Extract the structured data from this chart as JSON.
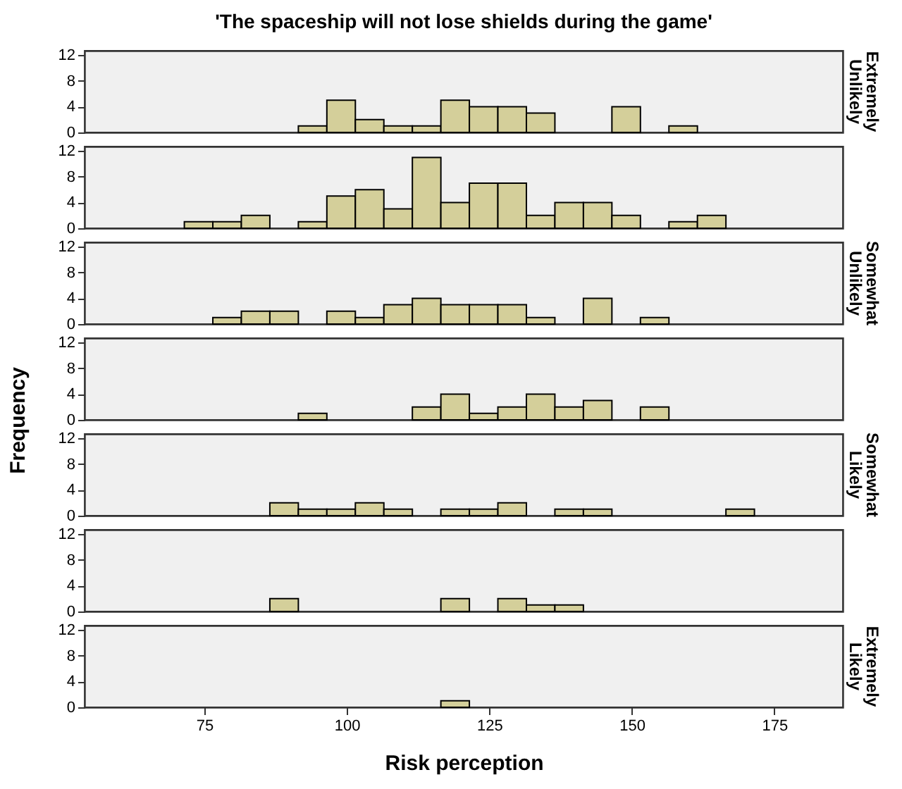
{
  "chart_data": [
    {
      "type": "histogram",
      "title": "'The spaceship will not lose shields during the game'",
      "y2label": "Extremely Unlikely",
      "color": "#d4cf9a",
      "bins": [
        71.5,
        76.5,
        81.5,
        86.5,
        91.5,
        96.5,
        101.5,
        106.5,
        111.5,
        116.5,
        121.5,
        126.5,
        131.5,
        136.5,
        141.5,
        146.5,
        151.5,
        156.5,
        161.5,
        166.5,
        171.5
      ],
      "values": [
        0,
        0,
        0,
        0,
        1,
        5,
        2,
        1,
        1,
        5,
        4,
        4,
        3,
        0,
        0,
        4,
        0,
        1,
        0,
        0
      ],
      "xlim": [
        54,
        187
      ],
      "ylim": [
        0,
        12.7
      ],
      "yticks": [
        0,
        4,
        8,
        12
      ],
      "tick_labels": "y",
      "grid": false
    },
    {
      "type": "histogram",
      "color": "#d4cf9a",
      "bins": [
        71.5,
        76.5,
        81.5,
        86.5,
        91.5,
        96.5,
        101.5,
        106.5,
        111.5,
        116.5,
        121.5,
        126.5,
        131.5,
        136.5,
        141.5,
        146.5,
        151.5,
        156.5,
        161.5,
        166.5,
        171.5
      ],
      "values": [
        1,
        1,
        2,
        0,
        1,
        5,
        6,
        3,
        11,
        4,
        7,
        7,
        2,
        4,
        4,
        2,
        0,
        1,
        2,
        0
      ],
      "xlim": [
        54,
        187
      ],
      "ylim": [
        0,
        12.7
      ],
      "yticks": [
        0,
        4,
        8,
        12
      ],
      "tick_labels": "y",
      "grid": false
    },
    {
      "type": "histogram",
      "y2label": "Somewhat Unlikely",
      "color": "#d4cf9a",
      "bins": [
        71.5,
        76.5,
        81.5,
        86.5,
        91.5,
        96.5,
        101.5,
        106.5,
        111.5,
        116.5,
        121.5,
        126.5,
        131.5,
        136.5,
        141.5,
        146.5,
        151.5,
        156.5,
        161.5,
        166.5,
        171.5
      ],
      "values": [
        0,
        1,
        2,
        2,
        0,
        2,
        1,
        3,
        4,
        3,
        3,
        3,
        1,
        0,
        4,
        0,
        1,
        0,
        0,
        0
      ],
      "xlim": [
        54,
        187
      ],
      "ylim": [
        0,
        12.7
      ],
      "yticks": [
        0,
        4,
        8,
        12
      ],
      "tick_labels": "y",
      "grid": false
    },
    {
      "type": "histogram",
      "ylabel": "Frequency",
      "color": "#d4cf9a",
      "bins": [
        71.5,
        76.5,
        81.5,
        86.5,
        91.5,
        96.5,
        101.5,
        106.5,
        111.5,
        116.5,
        121.5,
        126.5,
        131.5,
        136.5,
        141.5,
        146.5,
        151.5,
        156.5,
        161.5,
        166.5,
        171.5
      ],
      "values": [
        0,
        0,
        0,
        0,
        1,
        0,
        0,
        0,
        2,
        4,
        1,
        2,
        4,
        2,
        3,
        0,
        2,
        0,
        0,
        0
      ],
      "xlim": [
        54,
        187
      ],
      "ylim": [
        0,
        12.7
      ],
      "yticks": [
        0,
        4,
        8,
        12
      ],
      "tick_labels": "y",
      "grid": false
    },
    {
      "type": "histogram",
      "y2label": "Somewhat Likely",
      "color": "#d4cf9a",
      "bins": [
        71.5,
        76.5,
        81.5,
        86.5,
        91.5,
        96.5,
        101.5,
        106.5,
        111.5,
        116.5,
        121.5,
        126.5,
        131.5,
        136.5,
        141.5,
        146.5,
        151.5,
        156.5,
        161.5,
        166.5,
        171.5
      ],
      "values": [
        0,
        0,
        0,
        2,
        1,
        1,
        2,
        1,
        0,
        1,
        1,
        2,
        0,
        1,
        1,
        0,
        0,
        0,
        0,
        1
      ],
      "xlim": [
        54,
        187
      ],
      "ylim": [
        0,
        12.7
      ],
      "yticks": [
        0,
        4,
        8,
        12
      ],
      "tick_labels": "y",
      "grid": false
    },
    {
      "type": "histogram",
      "color": "#d4cf9a",
      "bins": [
        71.5,
        76.5,
        81.5,
        86.5,
        91.5,
        96.5,
        101.5,
        106.5,
        111.5,
        116.5,
        121.5,
        126.5,
        131.5,
        136.5,
        141.5,
        146.5,
        151.5,
        156.5,
        161.5,
        166.5,
        171.5
      ],
      "values": [
        0,
        0,
        0,
        2,
        0,
        0,
        0,
        0,
        0,
        2,
        0,
        2,
        1,
        1,
        0,
        0,
        0,
        0,
        0,
        0
      ],
      "xlim": [
        54,
        187
      ],
      "ylim": [
        0,
        12.7
      ],
      "yticks": [
        0,
        4,
        8,
        12
      ],
      "tick_labels": "y",
      "grid": false
    },
    {
      "type": "histogram",
      "y2label": "Extremely Likely",
      "xlabel": "Risk perception",
      "color": "#d4cf9a",
      "bins": [
        71.5,
        76.5,
        81.5,
        86.5,
        91.5,
        96.5,
        101.5,
        106.5,
        111.5,
        116.5,
        121.5,
        126.5,
        131.5,
        136.5,
        141.5,
        146.5,
        151.5,
        156.5,
        161.5,
        166.5,
        171.5
      ],
      "values": [
        0,
        0,
        0,
        0,
        0,
        0,
        0,
        0,
        0,
        1,
        0,
        0,
        0,
        0,
        0,
        0,
        0,
        0,
        0,
        0
      ],
      "xlim": [
        54,
        187
      ],
      "xticks": [
        75,
        100,
        125,
        150,
        175
      ],
      "ylim": [
        0,
        12.7
      ],
      "yticks": [
        0,
        4,
        8,
        12
      ],
      "grid": false
    }
  ]
}
